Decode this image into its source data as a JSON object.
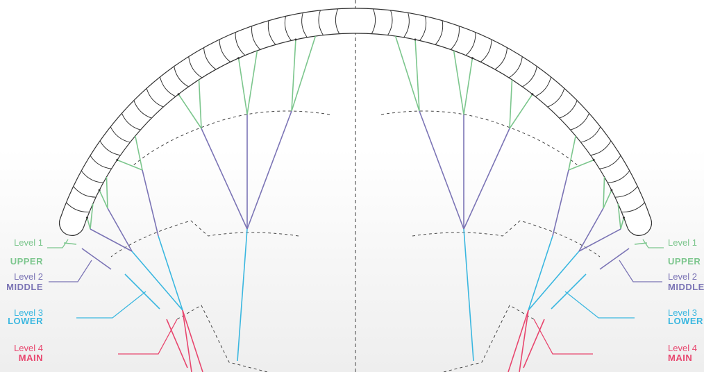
{
  "levels": [
    {
      "level": "Level 1",
      "name": "UPPER"
    },
    {
      "level": "Level 2",
      "name": "MIDDLE"
    },
    {
      "level": "Level 3",
      "name": "LOWER"
    },
    {
      "level": "Level 4",
      "name": "MAIN"
    }
  ]
}
